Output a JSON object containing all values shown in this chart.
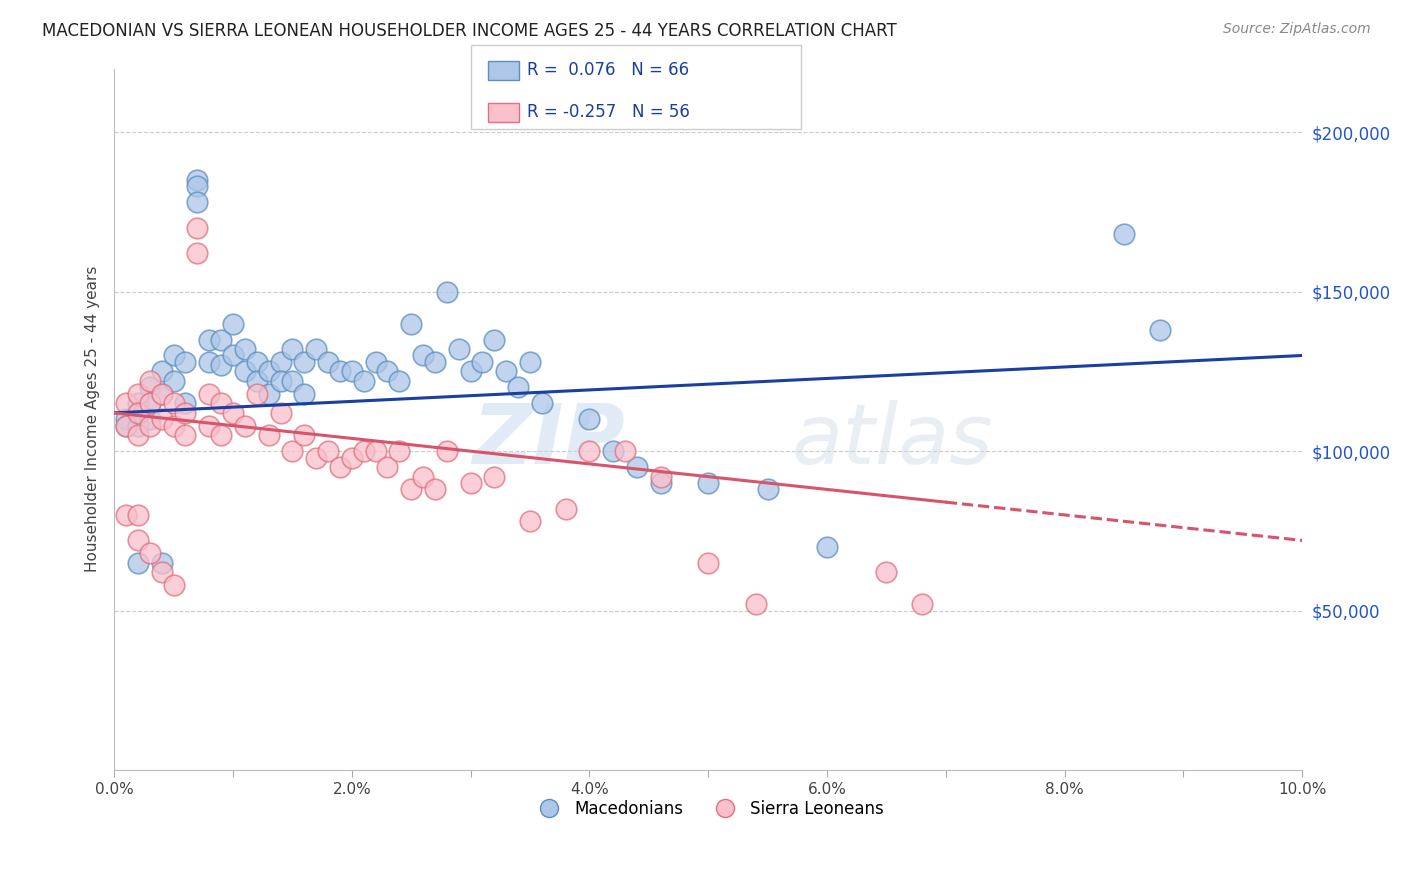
{
  "title": "MACEDONIAN VS SIERRA LEONEAN HOUSEHOLDER INCOME AGES 25 - 44 YEARS CORRELATION CHART",
  "source": "Source: ZipAtlas.com",
  "ylabel": "Householder Income Ages 25 - 44 years",
  "xlim": [
    0.0,
    0.1
  ],
  "ylim": [
    0,
    220000
  ],
  "yticks": [
    50000,
    100000,
    150000,
    200000
  ],
  "ytick_labels": [
    "$50,000",
    "$100,000",
    "$150,000",
    "$200,000"
  ],
  "xtick_labels": [
    "0.0%",
    "",
    "2.0%",
    "",
    "4.0%",
    "",
    "6.0%",
    "",
    "8.0%",
    "",
    "10.0%"
  ],
  "xticks": [
    0.0,
    0.01,
    0.02,
    0.03,
    0.04,
    0.05,
    0.06,
    0.07,
    0.08,
    0.09,
    0.1
  ],
  "background_color": "#ffffff",
  "grid_color": "#cccccc",
  "macedonian_color": "#aec6e8",
  "macedonian_edge": "#5b8fbf",
  "sierra_leonean_color": "#f9c0cb",
  "sierra_leonean_edge": "#e07080",
  "trend_blue": "#1a3fa3",
  "trend_pink": "#d9536a",
  "legend_R1": "R =  0.076",
  "legend_N1": "N = 66",
  "legend_R2": "R = -0.257",
  "legend_N2": "N = 56",
  "macedonians_label": "Macedonians",
  "sierra_leoneans_label": "Sierra Leoneans",
  "watermark": "ZIPatlas",
  "blue_trend_x0": 0.0,
  "blue_trend_y0": 112000,
  "blue_trend_x1": 0.1,
  "blue_trend_y1": 130000,
  "pink_trend_x0": 0.0,
  "pink_trend_y0": 112000,
  "pink_trend_x1_solid": 0.07,
  "pink_trend_x1": 0.1,
  "pink_trend_y1": 72000,
  "macedonian_x": [
    0.001,
    0.001,
    0.002,
    0.002,
    0.002,
    0.003,
    0.003,
    0.003,
    0.004,
    0.004,
    0.005,
    0.005,
    0.006,
    0.006,
    0.007,
    0.007,
    0.007,
    0.008,
    0.008,
    0.009,
    0.009,
    0.01,
    0.01,
    0.011,
    0.011,
    0.012,
    0.012,
    0.013,
    0.013,
    0.014,
    0.014,
    0.015,
    0.015,
    0.016,
    0.016,
    0.017,
    0.018,
    0.019,
    0.02,
    0.021,
    0.022,
    0.023,
    0.024,
    0.025,
    0.026,
    0.027,
    0.028,
    0.029,
    0.03,
    0.031,
    0.032,
    0.033,
    0.034,
    0.035,
    0.036,
    0.04,
    0.042,
    0.044,
    0.046,
    0.05,
    0.055,
    0.06,
    0.085,
    0.088,
    0.002,
    0.004
  ],
  "macedonian_y": [
    110000,
    108000,
    115000,
    112000,
    108000,
    120000,
    115000,
    110000,
    125000,
    118000,
    130000,
    122000,
    128000,
    115000,
    185000,
    183000,
    178000,
    135000,
    128000,
    135000,
    127000,
    140000,
    130000,
    132000,
    125000,
    128000,
    122000,
    125000,
    118000,
    128000,
    122000,
    132000,
    122000,
    128000,
    118000,
    132000,
    128000,
    125000,
    125000,
    122000,
    128000,
    125000,
    122000,
    140000,
    130000,
    128000,
    150000,
    132000,
    125000,
    128000,
    135000,
    125000,
    120000,
    128000,
    115000,
    110000,
    100000,
    95000,
    90000,
    90000,
    88000,
    70000,
    168000,
    138000,
    65000,
    65000
  ],
  "sierra_leonean_x": [
    0.001,
    0.001,
    0.002,
    0.002,
    0.002,
    0.003,
    0.003,
    0.003,
    0.004,
    0.004,
    0.005,
    0.005,
    0.006,
    0.006,
    0.007,
    0.007,
    0.008,
    0.008,
    0.009,
    0.009,
    0.01,
    0.011,
    0.012,
    0.013,
    0.014,
    0.015,
    0.016,
    0.017,
    0.018,
    0.019,
    0.02,
    0.021,
    0.022,
    0.023,
    0.024,
    0.025,
    0.026,
    0.027,
    0.028,
    0.03,
    0.032,
    0.035,
    0.038,
    0.04,
    0.043,
    0.046,
    0.05,
    0.054,
    0.065,
    0.068,
    0.001,
    0.002,
    0.002,
    0.003,
    0.004,
    0.005
  ],
  "sierra_leonean_y": [
    115000,
    108000,
    118000,
    112000,
    105000,
    122000,
    115000,
    108000,
    118000,
    110000,
    115000,
    108000,
    112000,
    105000,
    170000,
    162000,
    118000,
    108000,
    115000,
    105000,
    112000,
    108000,
    118000,
    105000,
    112000,
    100000,
    105000,
    98000,
    100000,
    95000,
    98000,
    100000,
    100000,
    95000,
    100000,
    88000,
    92000,
    88000,
    100000,
    90000,
    92000,
    78000,
    82000,
    100000,
    100000,
    92000,
    65000,
    52000,
    62000,
    52000,
    80000,
    80000,
    72000,
    68000,
    62000,
    58000
  ]
}
